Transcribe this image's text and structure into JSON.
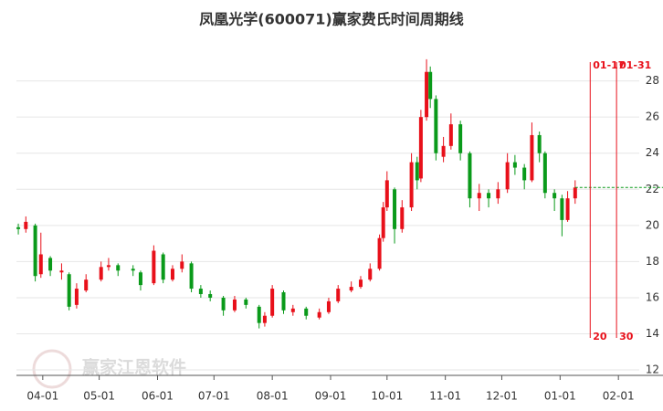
{
  "chart_data": {
    "type": "candlestick",
    "title": "凤凰光学(600071)赢家费氏时间周期线",
    "watermark": "赢家江恩软件",
    "x": [
      -13,
      -9,
      -4,
      -1,
      4,
      10,
      14,
      18,
      23,
      31,
      35,
      40,
      48,
      52,
      59,
      64,
      69,
      74,
      79,
      84,
      89,
      96,
      102,
      108,
      115,
      118,
      122,
      128,
      133,
      140,
      147,
      152,
      157,
      164,
      169,
      174,
      179,
      181,
      183,
      187,
      191,
      196,
      199,
      201,
      204,
      206,
      209,
      213,
      217,
      222,
      227,
      232,
      237,
      242,
      247,
      251,
      256,
      260,
      264,
      267,
      272,
      276,
      279,
      283
    ],
    "open": [
      19.9,
      19.8,
      20.0,
      17.3,
      18.2,
      17.4,
      17.3,
      15.6,
      16.4,
      17.0,
      17.7,
      17.8,
      17.6,
      17.4,
      16.8,
      18.4,
      17.0,
      17.6,
      17.9,
      16.5,
      16.2,
      16.0,
      15.3,
      15.9,
      15.5,
      14.6,
      15.0,
      16.3,
      15.2,
      15.4,
      14.9,
      15.2,
      15.8,
      16.4,
      16.6,
      17.0,
      17.6,
      19.3,
      21.0,
      22.0,
      19.8,
      21.0,
      23.5,
      22.6,
      26.0,
      28.5,
      27.0,
      23.8,
      24.4,
      25.6,
      24.0,
      21.5,
      21.8,
      21.5,
      22.0,
      23.5,
      23.2,
      22.5,
      25.0,
      24.0,
      21.8,
      21.5,
      20.3,
      21.5
    ],
    "high": [
      20.1,
      20.5,
      20.1,
      19.6,
      18.3,
      17.9,
      17.4,
      16.8,
      17.3,
      18.0,
      18.2,
      17.9,
      17.8,
      17.5,
      18.9,
      18.5,
      17.8,
      18.4,
      18.0,
      16.7,
      16.4,
      16.1,
      16.1,
      16.0,
      15.6,
      15.2,
      16.7,
      16.4,
      15.6,
      15.5,
      15.4,
      16.0,
      16.7,
      16.9,
      17.2,
      17.9,
      19.5,
      21.3,
      23.0,
      22.1,
      21.4,
      24.0,
      23.8,
      26.4,
      29.2,
      28.8,
      27.2,
      24.9,
      26.2,
      25.8,
      24.1,
      22.3,
      22.0,
      22.4,
      24.0,
      23.9,
      23.4,
      25.7,
      25.2,
      24.1,
      22.0,
      21.7,
      21.9,
      22.5
    ],
    "low": [
      19.5,
      19.6,
      16.9,
      17.1,
      17.2,
      17.0,
      15.3,
      15.4,
      16.3,
      16.9,
      17.5,
      17.2,
      17.2,
      16.4,
      16.7,
      16.8,
      16.9,
      17.4,
      16.3,
      16.0,
      15.8,
      15.0,
      15.2,
      15.4,
      14.3,
      14.4,
      14.9,
      15.1,
      15.0,
      14.8,
      14.8,
      15.1,
      15.7,
      16.3,
      16.5,
      16.9,
      17.5,
      19.1,
      20.8,
      19.0,
      19.6,
      20.8,
      22.0,
      22.4,
      25.8,
      26.5,
      23.6,
      23.5,
      24.2,
      23.6,
      21.0,
      20.8,
      21.0,
      21.2,
      21.8,
      22.8,
      22.0,
      22.4,
      23.5,
      21.5,
      20.8,
      19.4,
      20.2,
      21.2
    ],
    "close": [
      19.8,
      20.2,
      17.2,
      18.4,
      17.5,
      17.5,
      15.5,
      16.5,
      17.0,
      17.7,
      17.8,
      17.5,
      17.5,
      16.7,
      18.6,
      17.0,
      17.6,
      18.0,
      16.5,
      16.2,
      16.0,
      15.3,
      15.9,
      15.6,
      14.6,
      15.0,
      16.5,
      15.3,
      15.4,
      15.0,
      15.2,
      15.8,
      16.5,
      16.6,
      17.0,
      17.6,
      19.3,
      21.0,
      22.5,
      19.8,
      21.0,
      23.5,
      22.5,
      26.0,
      28.5,
      27.0,
      24.0,
      24.4,
      25.6,
      24.0,
      21.5,
      21.8,
      21.5,
      22.0,
      23.5,
      23.2,
      22.5,
      25.0,
      24.0,
      21.8,
      21.5,
      20.3,
      21.5,
      22.1
    ],
    "up_color": "#e8101a",
    "down_color": "#0a9a1a",
    "xlim": [
      -14,
      329.7
    ],
    "ylim": [
      11.75,
      29.7
    ],
    "yticks": [
      12,
      14,
      16,
      18,
      20,
      22,
      24,
      26,
      28
    ],
    "xticks": [
      {
        "value": 0,
        "label": "04-01"
      },
      {
        "value": 30,
        "label": "05-01"
      },
      {
        "value": 61,
        "label": "06-01"
      },
      {
        "value": 91,
        "label": "07-01"
      },
      {
        "value": 122,
        "label": "08-01"
      },
      {
        "value": 153,
        "label": "09-01"
      },
      {
        "value": 183,
        "label": "10-01"
      },
      {
        "value": 214,
        "label": "11-01"
      },
      {
        "value": 244,
        "label": "12-01"
      },
      {
        "value": 275,
        "label": "01-01"
      },
      {
        "value": 306,
        "label": "02-01"
      }
    ],
    "grid": true,
    "cycle_lines": {
      "color": "#e8101a",
      "x": [
        291,
        305
      ],
      "top_labels": [
        "01-17",
        "01-31"
      ],
      "bottom_labels": [
        20,
        30
      ]
    },
    "reference_line": {
      "value": 22.1,
      "color": "#0a9a1a"
    }
  }
}
